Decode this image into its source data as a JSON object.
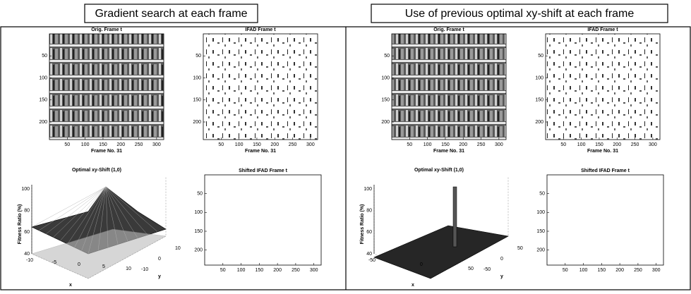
{
  "panels": [
    {
      "heading": "Gradient search at each frame",
      "image_plots": [
        {
          "title": "Orig. Frame t",
          "yticks": [
            "50",
            "100",
            "150",
            "200"
          ],
          "xticks": [
            "50",
            "100",
            "150",
            "200",
            "250",
            "300"
          ],
          "xlabel": "Frame No. 31"
        },
        {
          "title": "IFAD Frame t",
          "yticks": [
            "50",
            "100",
            "150",
            "200"
          ],
          "xticks": [
            "50",
            "100",
            "150",
            "200",
            "250",
            "300"
          ],
          "xlabel": "Frame No. 31"
        },
        {
          "title": "Shifted IFAD Frame t",
          "yticks": [
            "50",
            "100",
            "150",
            "200"
          ],
          "xticks": [
            "50",
            "100",
            "150",
            "200",
            "250",
            "300"
          ]
        }
      ],
      "surface_plot": {
        "title": "Optimal xy-Shift (1,0)",
        "zticks": [
          "40",
          "60",
          "80",
          "100"
        ],
        "xticks": [
          "-10",
          "-5",
          "0",
          "5",
          "10"
        ],
        "yticks": [
          "-10",
          "0",
          "10"
        ],
        "xlabel": "x",
        "ylabel": "y",
        "zlabel": "Fitness Ratio (%)"
      }
    },
    {
      "heading": "Use of previous optimal xy-shift at each frame",
      "image_plots": [
        {
          "title": "Orig. Frame t",
          "yticks": [
            "50",
            "100",
            "150",
            "200"
          ],
          "xticks": [
            "50",
            "100",
            "150",
            "200",
            "250",
            "300"
          ],
          "xlabel": "Frame No. 31"
        },
        {
          "title": "IFAD Frame t",
          "yticks": [
            "50",
            "100",
            "150",
            "200"
          ],
          "xticks": [
            "50",
            "100",
            "150",
            "200",
            "250",
            "300"
          ],
          "xlabel": "Frame No. 31"
        },
        {
          "title": "Shifted IFAD Frame t",
          "yticks": [
            "50",
            "100",
            "150",
            "200"
          ],
          "xticks": [
            "50",
            "100",
            "150",
            "200",
            "250",
            "300"
          ]
        }
      ],
      "surface_plot": {
        "title": "Optimal xy-Shift (1,0)",
        "zticks": [
          "40",
          "60",
          "80",
          "100"
        ],
        "xticks": [
          "-50",
          "0",
          "50"
        ],
        "yticks": [
          "-50",
          "0",
          "50"
        ],
        "xlabel": "x",
        "ylabel": "y",
        "zlabel": "Fitness Ratio (%)"
      }
    }
  ]
}
